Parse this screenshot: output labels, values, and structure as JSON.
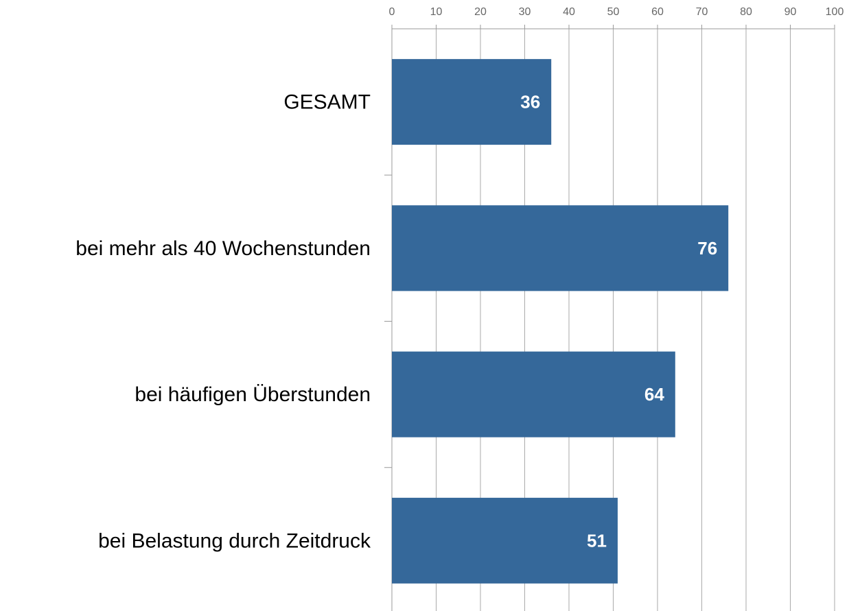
{
  "chart_data": {
    "type": "bar",
    "orientation": "horizontal",
    "categories": [
      "GESAMT",
      "bei mehr als 40 Wochenstunden",
      "bei häufigen Überstunden",
      "bei Belastung durch Zeitdruck"
    ],
    "values": [
      36,
      76,
      64,
      51
    ],
    "color": "#35689a",
    "xlim": [
      0,
      100
    ],
    "xticks": [
      0,
      10,
      20,
      30,
      40,
      50,
      60,
      70,
      80,
      90,
      100
    ],
    "grid": true
  }
}
